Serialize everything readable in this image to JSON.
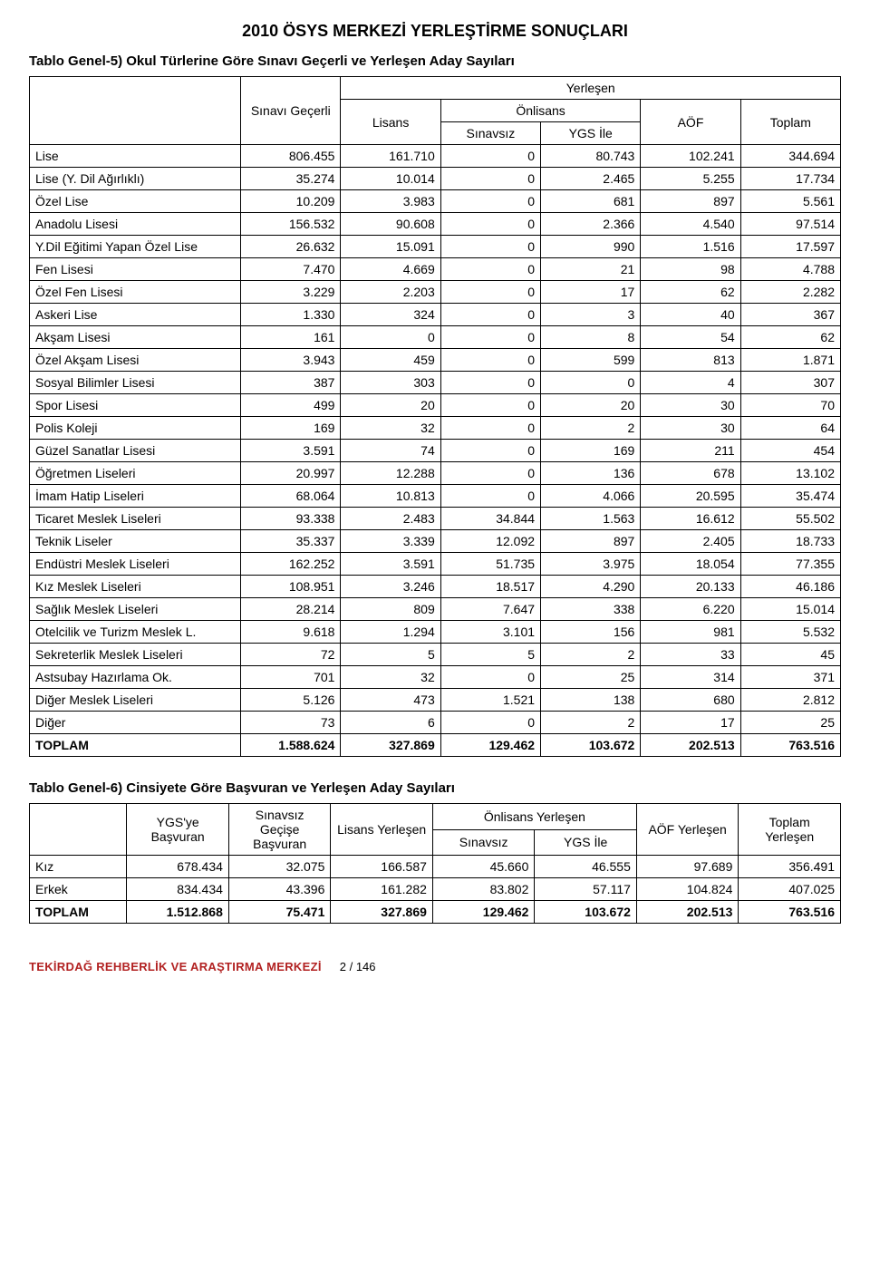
{
  "doc": {
    "title": "2010 ÖSYS MERKEZİ YERLEŞTİRME SONUÇLARI",
    "footer_org": "TEKİRDAĞ REHBERLİK VE ARAŞTIRMA MERKEZİ",
    "page_indicator": "2 / 146"
  },
  "table1": {
    "caption": "Tablo Genel-5) Okul Türlerine Göre Sınavı Geçerli  ve Yerleşen Aday Sayıları",
    "headers": {
      "sinavi_gecerli": "Sınavı Geçerli",
      "yerlesen": "Yerleşen",
      "lisans": "Lisans",
      "onlisans": "Önlisans",
      "sinavsiz": "Sınavsız",
      "ygs_ile": "YGS İle",
      "aof": "AÖF",
      "toplam": "Toplam"
    },
    "rows": [
      {
        "label": "Lise",
        "v": [
          "806.455",
          "161.710",
          "0",
          "80.743",
          "102.241",
          "344.694"
        ]
      },
      {
        "label": "Lise (Y. Dil Ağırlıklı)",
        "v": [
          "35.274",
          "10.014",
          "0",
          "2.465",
          "5.255",
          "17.734"
        ]
      },
      {
        "label": "Özel Lise",
        "v": [
          "10.209",
          "3.983",
          "0",
          "681",
          "897",
          "5.561"
        ]
      },
      {
        "label": "Anadolu Lisesi",
        "v": [
          "156.532",
          "90.608",
          "0",
          "2.366",
          "4.540",
          "97.514"
        ]
      },
      {
        "label": "Y.Dil Eğitimi Yapan Özel Lise",
        "v": [
          "26.632",
          "15.091",
          "0",
          "990",
          "1.516",
          "17.597"
        ]
      },
      {
        "label": "Fen Lisesi",
        "v": [
          "7.470",
          "4.669",
          "0",
          "21",
          "98",
          "4.788"
        ]
      },
      {
        "label": "Özel Fen Lisesi",
        "v": [
          "3.229",
          "2.203",
          "0",
          "17",
          "62",
          "2.282"
        ]
      },
      {
        "label": "Askeri Lise",
        "v": [
          "1.330",
          "324",
          "0",
          "3",
          "40",
          "367"
        ]
      },
      {
        "label": "Akşam Lisesi",
        "v": [
          "161",
          "0",
          "0",
          "8",
          "54",
          "62"
        ]
      },
      {
        "label": "Özel Akşam Lisesi",
        "v": [
          "3.943",
          "459",
          "0",
          "599",
          "813",
          "1.871"
        ]
      },
      {
        "label": "Sosyal Bilimler Lisesi",
        "v": [
          "387",
          "303",
          "0",
          "0",
          "4",
          "307"
        ]
      },
      {
        "label": "Spor Lisesi",
        "v": [
          "499",
          "20",
          "0",
          "20",
          "30",
          "70"
        ]
      },
      {
        "label": "Polis Koleji",
        "v": [
          "169",
          "32",
          "0",
          "2",
          "30",
          "64"
        ]
      },
      {
        "label": "Güzel Sanatlar Lisesi",
        "v": [
          "3.591",
          "74",
          "0",
          "169",
          "211",
          "454"
        ]
      },
      {
        "label": "Öğretmen Liseleri",
        "v": [
          "20.997",
          "12.288",
          "0",
          "136",
          "678",
          "13.102"
        ]
      },
      {
        "label": "İmam Hatip Liseleri",
        "v": [
          "68.064",
          "10.813",
          "0",
          "4.066",
          "20.595",
          "35.474"
        ]
      },
      {
        "label": "Ticaret Meslek Liseleri",
        "v": [
          "93.338",
          "2.483",
          "34.844",
          "1.563",
          "16.612",
          "55.502"
        ]
      },
      {
        "label": "Teknik Liseler",
        "v": [
          "35.337",
          "3.339",
          "12.092",
          "897",
          "2.405",
          "18.733"
        ]
      },
      {
        "label": "Endüstri Meslek Liseleri",
        "v": [
          "162.252",
          "3.591",
          "51.735",
          "3.975",
          "18.054",
          "77.355"
        ]
      },
      {
        "label": "Kız Meslek Liseleri",
        "v": [
          "108.951",
          "3.246",
          "18.517",
          "4.290",
          "20.133",
          "46.186"
        ]
      },
      {
        "label": "Sağlık Meslek Liseleri",
        "v": [
          "28.214",
          "809",
          "7.647",
          "338",
          "6.220",
          "15.014"
        ]
      },
      {
        "label": "Otelcilik ve Turizm Meslek L.",
        "v": [
          "9.618",
          "1.294",
          "3.101",
          "156",
          "981",
          "5.532"
        ]
      },
      {
        "label": "Sekreterlik Meslek Liseleri",
        "v": [
          "72",
          "5",
          "5",
          "2",
          "33",
          "45"
        ]
      },
      {
        "label": "Astsubay Hazırlama Ok.",
        "v": [
          "701",
          "32",
          "0",
          "25",
          "314",
          "371"
        ]
      },
      {
        "label": "Diğer Meslek Liseleri",
        "v": [
          "5.126",
          "473",
          "1.521",
          "138",
          "680",
          "2.812"
        ]
      },
      {
        "label": "Diğer",
        "v": [
          "73",
          "6",
          "0",
          "2",
          "17",
          "25"
        ]
      }
    ],
    "total": {
      "label": "TOPLAM",
      "v": [
        "1.588.624",
        "327.869",
        "129.462",
        "103.672",
        "202.513",
        "763.516"
      ]
    }
  },
  "table2": {
    "caption": "Tablo Genel-6) Cinsiyete Göre Başvuran ve Yerleşen Aday Sayıları",
    "headers": {
      "ygs_basvuran": "YGS'ye Başvuran",
      "sinavsiz_gecise_basvuran": "Sınavsız Geçişe Başvuran",
      "lisans_yerlesen": "Lisans Yerleşen",
      "onlisans_yerlesen": "Önlisans Yerleşen",
      "sinavsiz": "Sınavsız",
      "ygs_ile": "YGS İle",
      "aof_yerlesen": "AÖF Yerleşen",
      "toplam_yerlesen": "Toplam Yerleşen"
    },
    "rows": [
      {
        "label": "Kız",
        "v": [
          "678.434",
          "32.075",
          "166.587",
          "45.660",
          "46.555",
          "97.689",
          "356.491"
        ]
      },
      {
        "label": "Erkek",
        "v": [
          "834.434",
          "43.396",
          "161.282",
          "83.802",
          "57.117",
          "104.824",
          "407.025"
        ]
      }
    ],
    "total": {
      "label": "TOPLAM",
      "v": [
        "1.512.868",
        "75.471",
        "327.869",
        "129.462",
        "103.672",
        "202.513",
        "763.516"
      ]
    }
  },
  "style": {
    "text_color": "#000000",
    "border_color": "#000000",
    "footer_color": "#b22222",
    "background": "#ffffff",
    "font_family": "Arial"
  }
}
